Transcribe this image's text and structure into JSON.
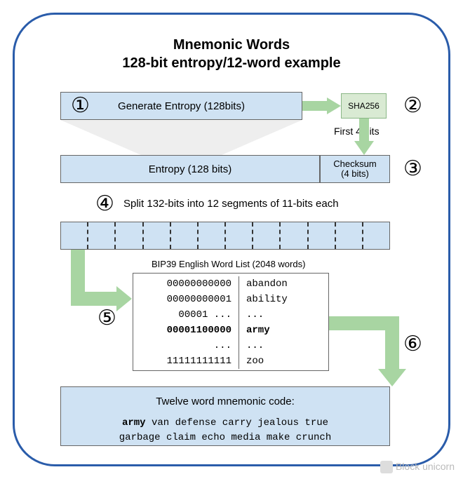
{
  "title_line1": "Mnemonic Words",
  "title_line2": "128-bit entropy/12-word example",
  "colors": {
    "frame_border": "#2a5caa",
    "box_fill": "#cfe2f3",
    "box_border": "#666666",
    "sha_fill": "#d9ead3",
    "sha_border": "#8ab786",
    "arrow_fill": "#a8d5a2",
    "background": "#ffffff"
  },
  "step1": {
    "num": "①",
    "label": "Generate Entropy (128bits)"
  },
  "sha": {
    "label": "SHA256"
  },
  "step2": {
    "num": "②"
  },
  "first4": "First 4 bits",
  "entropy_box": "Entropy (128 bits)",
  "checksum_box_line1": "Checksum",
  "checksum_box_line2": "(4 bits)",
  "step3": {
    "num": "③"
  },
  "step4": {
    "num": "④",
    "label": "Split 132-bits into 12 segments of 11-bits each"
  },
  "segments_count": 12,
  "wordlist_title": "BIP39 English Word List (2048 words)",
  "step5": {
    "num": "⑤"
  },
  "wordlist_rows": [
    {
      "left": "00000000000",
      "right": "abandon",
      "bold": false
    },
    {
      "left": "00000000001",
      "right": "ability",
      "bold": false
    },
    {
      "left": "00001 ...",
      "right": "...",
      "bold": false
    },
    {
      "left": "00001100000",
      "right": "army",
      "bold": true
    },
    {
      "left": "...",
      "right": "...",
      "bold": false
    },
    {
      "left": "11111111111",
      "right": "zoo",
      "bold": false
    }
  ],
  "step6": {
    "num": "⑥"
  },
  "mnemonic_title": "Twelve word mnemonic code:",
  "mnemonic_line1_pre": "army",
  "mnemonic_line1_rest": " van defense carry jealous true",
  "mnemonic_line2": "garbage claim echo media make crunch",
  "watermark": "Block unicorn"
}
